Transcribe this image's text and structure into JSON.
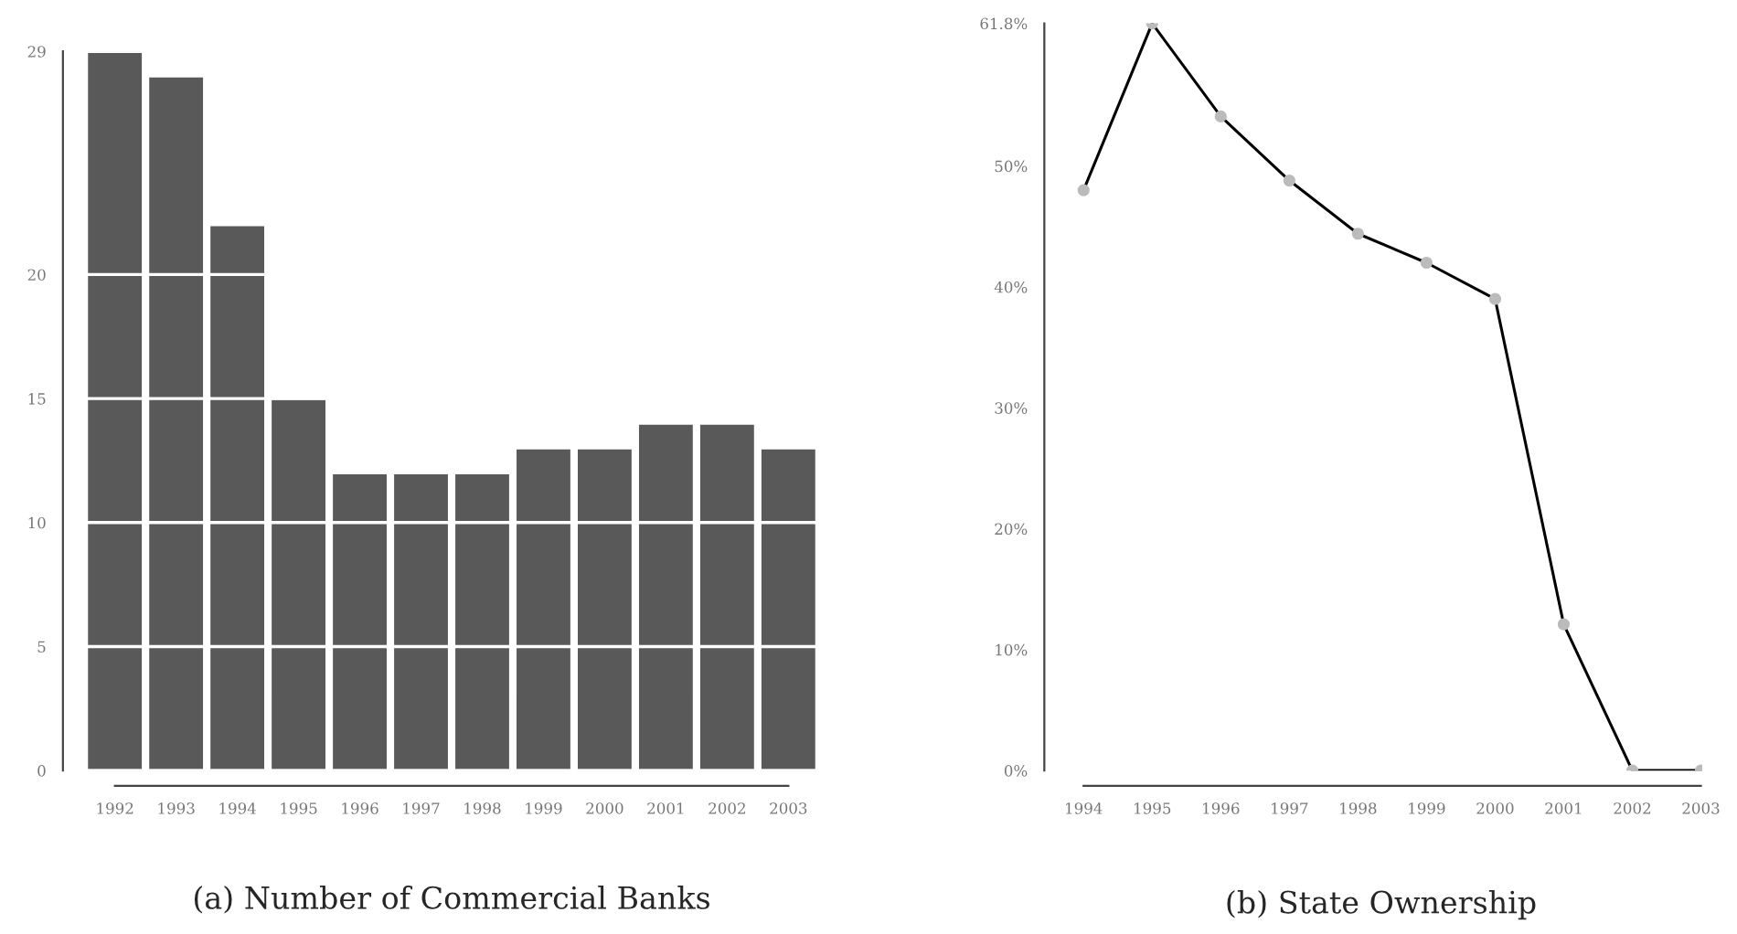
{
  "chart_data": [
    {
      "type": "bar",
      "title": "(a) Number of Commercial Banks",
      "categories": [
        "1992",
        "1993",
        "1994",
        "1995",
        "1996",
        "1997",
        "1998",
        "1999",
        "2000",
        "2001",
        "2002",
        "2003"
      ],
      "values": [
        29,
        28,
        22,
        15,
        12,
        12,
        12,
        13,
        13,
        14,
        14,
        13
      ],
      "color": "#595959",
      "ylim": [
        0,
        29
      ],
      "yticks": [
        0,
        5,
        10,
        15,
        20,
        29
      ],
      "grid": "y"
    },
    {
      "type": "line",
      "title": "(b) State Ownership",
      "x": [
        1994,
        1995,
        1996,
        1997,
        1998,
        1999,
        2000,
        2001,
        2002,
        2003
      ],
      "series": [
        {
          "color": "#000000",
          "values": [
            48,
            61.8,
            54.1,
            48.8,
            44.4,
            42,
            39,
            12.1,
            0,
            0
          ]
        }
      ],
      "xlim": [
        1994,
        2003
      ],
      "xticks": [
        1994,
        1995,
        1996,
        1997,
        1998,
        1999,
        2000,
        2001,
        2002,
        2003
      ],
      "ylim": [
        0,
        61.8
      ],
      "yticks": [
        {
          "value": 0,
          "label": "0%"
        },
        {
          "value": 10,
          "label": "10%"
        },
        {
          "value": 20,
          "label": "20%"
        },
        {
          "value": 30,
          "label": "30%"
        },
        {
          "value": 40,
          "label": "40%"
        },
        {
          "value": 50,
          "label": "50%"
        },
        {
          "value": 61.8,
          "label": "61.8%"
        }
      ],
      "marker": "circle"
    }
  ]
}
